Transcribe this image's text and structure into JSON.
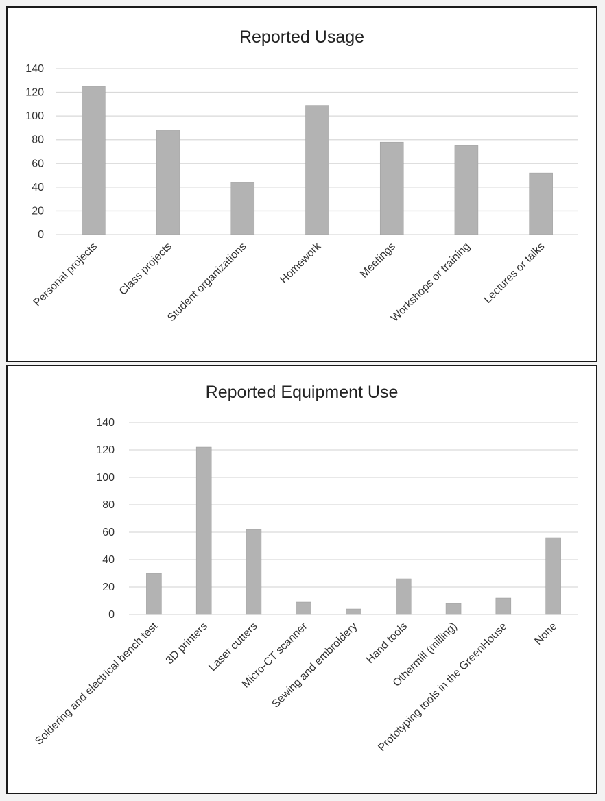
{
  "colors": {
    "bar": "#b3b3b3",
    "grid": "#d9d9d9",
    "text": "#333333"
  },
  "chart_data": [
    {
      "type": "bar",
      "title": "Reported Usage",
      "xlabel": "",
      "ylabel": "",
      "ylim": [
        0,
        140
      ],
      "yticks": [
        0,
        20,
        40,
        60,
        80,
        100,
        120,
        140
      ],
      "categories": [
        "Personal projects",
        "Class projects",
        "Student organizations",
        "Homework",
        "Meetings",
        "Workshops or training",
        "Lectures or talks"
      ],
      "values": [
        125,
        88,
        44,
        109,
        78,
        75,
        52
      ],
      "grid": true,
      "legend": "none"
    },
    {
      "type": "bar",
      "title": "Reported Equipment Use",
      "xlabel": "",
      "ylabel": "",
      "ylim": [
        0,
        140
      ],
      "yticks": [
        0,
        20,
        40,
        60,
        80,
        100,
        120,
        140
      ],
      "categories": [
        "Soldering and electrical bench test",
        "3D printers",
        "Laser cutters",
        "Micro-CT scanner",
        "Sewing and embroidery",
        "Hand tools",
        "Othermill (milling)",
        "Prototyping tools in the GreenHouse",
        "None"
      ],
      "values": [
        30,
        122,
        62,
        9,
        4,
        26,
        8,
        12,
        56
      ],
      "grid": true,
      "legend": "none"
    }
  ]
}
